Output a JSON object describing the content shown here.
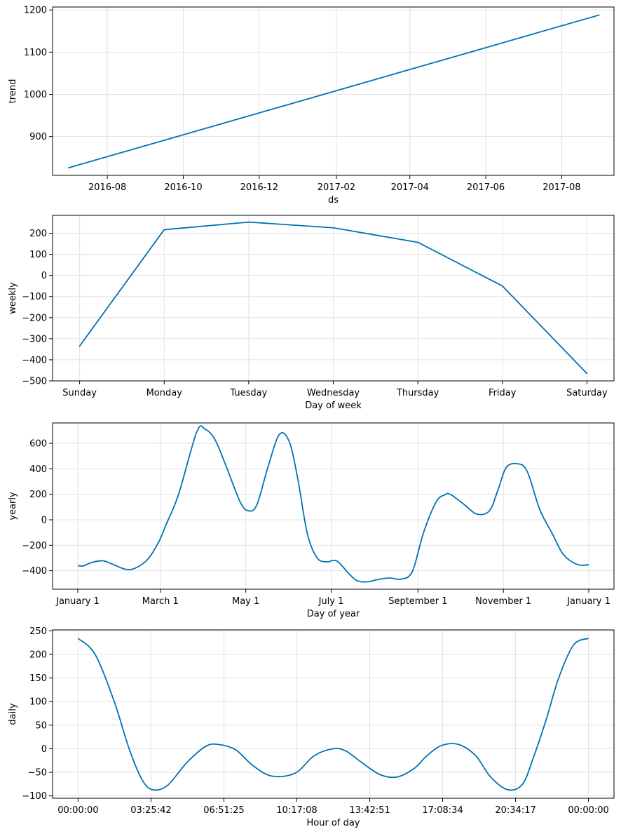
{
  "chart_data": [
    {
      "type": "line",
      "xlabel": "ds",
      "ylabel": "trend",
      "x_ticks": [
        "2016-08",
        "2016-10",
        "2016-12",
        "2017-02",
        "2017-04",
        "2017-06",
        "2017-08"
      ],
      "y_ticks": [
        "900",
        "1000",
        "1100",
        "1200"
      ],
      "x_range": [
        "2016-06-18",
        "2017-09-12"
      ],
      "ylim": [
        808,
        1207
      ],
      "x": [
        "2016-07-01",
        "2017-08-31"
      ],
      "y": [
        826,
        1188
      ],
      "grid": true,
      "color": "#0072b2"
    },
    {
      "type": "line",
      "xlabel": "Day of week",
      "ylabel": "weekly",
      "categories": [
        "Sunday",
        "Monday",
        "Tuesday",
        "Wednesday",
        "Thursday",
        "Friday",
        "Saturday"
      ],
      "y_ticks": [
        "200",
        "100",
        "0",
        "−100",
        "−200",
        "−300",
        "−400",
        "−500"
      ],
      "ylim": [
        -500,
        285
      ],
      "values": [
        -335,
        217,
        253,
        226,
        157,
        -50,
        -465
      ],
      "grid": true,
      "color": "#0072b2"
    },
    {
      "type": "line",
      "xlabel": "Day of year",
      "ylabel": "yearly",
      "x_ticks": [
        "January 1",
        "March 1",
        "May 1",
        "July 1",
        "September 1",
        "November 1",
        "January 1"
      ],
      "y_ticks": [
        "600",
        "400",
        "200",
        "0",
        "−200",
        "−400"
      ],
      "ylim": [
        -545,
        760
      ],
      "x_unit": "day of year",
      "x": [
        0,
        4,
        10,
        18,
        25,
        34,
        41,
        50,
        58,
        63,
        72,
        85,
        91,
        98,
        106,
        116,
        122,
        128,
        136,
        144,
        151,
        157,
        164,
        171,
        178,
        182,
        186,
        193,
        199,
        206,
        215,
        223,
        231,
        239,
        247,
        256,
        262,
        266,
        276,
        285,
        294,
        300,
        306,
        314,
        321,
        330,
        339,
        347,
        357,
        365
      ],
      "y": [
        -360,
        -362,
        -335,
        -322,
        -350,
        -388,
        -380,
        -310,
        -170,
        -40,
        200,
        690,
        710,
        630,
        420,
        140,
        70,
        120,
        420,
        670,
        615,
        330,
        -110,
        -300,
        -330,
        -320,
        -330,
        -415,
        -475,
        -488,
        -468,
        -457,
        -466,
        -405,
        -100,
        140,
        195,
        200,
        120,
        45,
        70,
        230,
        410,
        440,
        380,
        80,
        -110,
        -275,
        -352,
        -352
      ],
      "grid": true,
      "color": "#0072b2"
    },
    {
      "type": "line",
      "xlabel": "Hour of day",
      "ylabel": "daily",
      "x_ticks": [
        "00:00:00",
        "03:25:42",
        "06:51:25",
        "10:17:08",
        "13:42:51",
        "17:08:34",
        "20:34:17",
        "00:00:00"
      ],
      "y_ticks": [
        "250",
        "200",
        "150",
        "100",
        "50",
        "0",
        "−50",
        "−100"
      ],
      "ylim": [
        -105,
        252
      ],
      "x_unit": "hours",
      "x": [
        0,
        0.8,
        1.7,
        2.4,
        3.0,
        3.5,
        4.2,
        5.1,
        6.0,
        6.6,
        7.4,
        8.2,
        9.1,
        10.2,
        11.1,
        12.0,
        12.6,
        13.3,
        14.2,
        15.0,
        15.8,
        16.4,
        17.1,
        17.9,
        18.7,
        19.4,
        20.2,
        20.9,
        21.4,
        22.0,
        22.6,
        23.3,
        24.0
      ],
      "y": [
        234,
        200,
        100,
        0,
        -65,
        -87,
        -78,
        -30,
        5,
        9,
        -2,
        -35,
        -58,
        -52,
        -15,
        0,
        -5,
        -28,
        -55,
        -60,
        -42,
        -15,
        7,
        9,
        -15,
        -60,
        -87,
        -75,
        -20,
        60,
        150,
        220,
        234
      ],
      "grid": true,
      "color": "#0072b2"
    }
  ]
}
